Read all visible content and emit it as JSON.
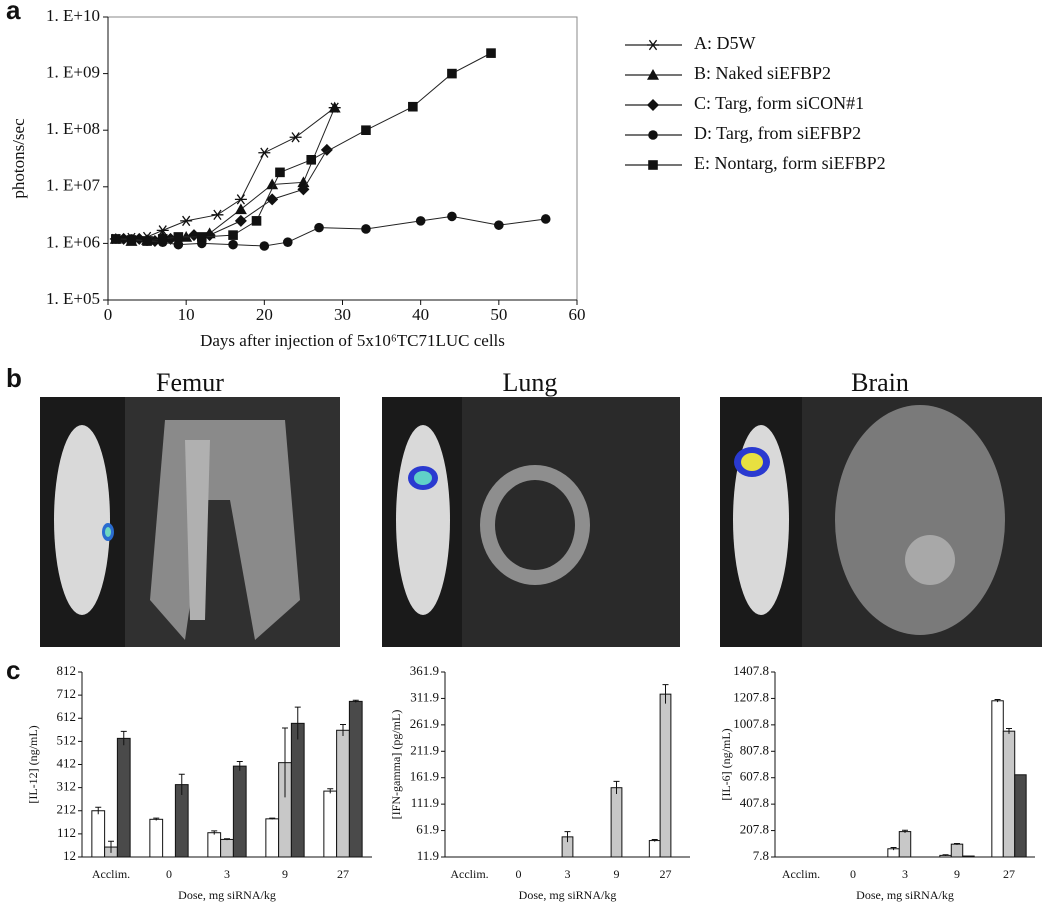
{
  "panel_labels": [
    "a",
    "b",
    "c"
  ],
  "images": {
    "titles": [
      "Femur",
      "Lung",
      "Brain"
    ]
  },
  "chart_data": [
    {
      "type": "line",
      "yscale": "log",
      "xlabel": "Days after injection of 5x10⁶TC71LUC cells",
      "ylabel": "photons/sec",
      "xlim": [
        0,
        60
      ],
      "xticks": [
        0,
        10,
        20,
        30,
        40,
        50,
        60
      ],
      "ylim": [
        100000,
        10000000000
      ],
      "yticks": [
        {
          "value": 100000,
          "label": "1. E+05"
        },
        {
          "value": 1000000,
          "label": "1. E+06"
        },
        {
          "value": 10000000,
          "label": "1. E+07"
        },
        {
          "value": 100000000,
          "label": "1. E+08"
        },
        {
          "value": 1000000000,
          "label": "1. E+09"
        },
        {
          "value": 10000000000,
          "label": "1. E+10"
        }
      ],
      "series": [
        {
          "name": "A: D5W",
          "color": "#222222",
          "marker": "asterisk",
          "x": [
            1,
            3,
            5,
            7,
            10,
            14,
            17,
            20,
            24,
            29
          ],
          "values": [
            1200000,
            1250000,
            1300000,
            1700000,
            2500000,
            3200000,
            6000000,
            40000000,
            75000000,
            250000000
          ]
        },
        {
          "name": "B: Naked siEFBP2",
          "color": "#222222",
          "marker": "triangle",
          "x": [
            1,
            3,
            5,
            7,
            10,
            13,
            17,
            21,
            25,
            29
          ],
          "values": [
            1200000,
            1100000,
            1150000,
            1300000,
            1300000,
            1500000,
            4000000,
            11000000,
            12000000,
            250000000
          ]
        },
        {
          "name": "C: Targ, form siCON#1",
          "color": "#222222",
          "marker": "diamond",
          "x": [
            2,
            4,
            6,
            8,
            11,
            13,
            17,
            21,
            25,
            28
          ],
          "values": [
            1200000,
            1200000,
            1100000,
            1200000,
            1400000,
            1400000,
            2500000,
            6000000,
            9000000,
            45000000
          ]
        },
        {
          "name": "D: Targ, from siEFBP2",
          "color": "#222222",
          "marker": "circle",
          "x": [
            1,
            3,
            5,
            7,
            9,
            12,
            16,
            20,
            23,
            27,
            33,
            40,
            44,
            50,
            56
          ],
          "values": [
            1200000,
            1200000,
            1100000,
            1050000,
            950000,
            1000000,
            950000,
            900000,
            1050000,
            1900000,
            1800000,
            2500000,
            3000000,
            2100000,
            2700000
          ]
        },
        {
          "name": "E: Nontarg, form siEFBP2",
          "color": "#222222",
          "marker": "square",
          "x": [
            1,
            3,
            5,
            7,
            9,
            12,
            16,
            19,
            22,
            26,
            33,
            39,
            44,
            49
          ],
          "values": [
            1200000,
            1150000,
            1100000,
            1200000,
            1300000,
            1300000,
            1400000,
            2500000,
            18000000,
            30000000,
            100000000,
            260000000,
            1000000000,
            2300000000
          ]
        }
      ]
    },
    {
      "type": "bar",
      "ylabel": "[IL-12] (ng/mL)",
      "xlabel": "Dose, mg siRNA/kg",
      "categories": [
        "Acclim.",
        "0",
        "3",
        "9",
        "27"
      ],
      "ylim": [
        12,
        812
      ],
      "yticks": [
        12,
        112,
        212,
        312,
        412,
        512,
        612,
        712,
        812
      ],
      "series": [
        {
          "color": "#ffffff",
          "values": [
            212,
            175,
            117,
            177,
            297
          ],
          "errors": [
            15,
            5,
            8,
            3,
            10
          ]
        },
        {
          "color": "#c8c8c8",
          "values": [
            55,
            null,
            88,
            420,
            560
          ],
          "errors": [
            25,
            null,
            3,
            150,
            25
          ]
        },
        {
          "color": "#4a4a4a",
          "values": [
            525,
            325,
            405,
            590,
            685
          ],
          "errors": [
            30,
            45,
            20,
            70,
            5
          ]
        }
      ]
    },
    {
      "type": "bar",
      "ylabel": "[IFN-gamma] (pg/mL)",
      "xlabel": "Dose, mg siRNA/kg",
      "categories": [
        "Acclim.",
        "0",
        "3",
        "9",
        "27"
      ],
      "ylim": [
        11.9,
        361.9
      ],
      "yticks": [
        11.9,
        61.9,
        111.9,
        161.9,
        211.9,
        261.9,
        311.9,
        361.9
      ],
      "series": [
        {
          "color": "#ffffff",
          "values": [
            null,
            null,
            null,
            null,
            43
          ],
          "errors": [
            null,
            null,
            null,
            null,
            2
          ]
        },
        {
          "color": "#c8c8c8",
          "values": [
            null,
            null,
            50,
            143,
            320
          ],
          "errors": [
            null,
            null,
            10,
            12,
            18
          ]
        },
        {
          "color": "#4a4a4a",
          "values": [
            null,
            null,
            null,
            null,
            null
          ],
          "errors": [
            null,
            null,
            null,
            null,
            null
          ]
        }
      ]
    },
    {
      "type": "bar",
      "ylabel": "[IL-6] (ng/mL)",
      "xlabel": "Dose, mg siRNA/kg",
      "categories": [
        "Acclim.",
        "0",
        "3",
        "9",
        "27"
      ],
      "ylim": [
        7.8,
        1407.8
      ],
      "yticks": [
        7.8,
        207.8,
        407.8,
        607.8,
        807.8,
        1007.8,
        1207.8,
        1407.8
      ],
      "series": [
        {
          "color": "#ffffff",
          "values": [
            null,
            null,
            70,
            20,
            1190
          ],
          "errors": [
            null,
            null,
            10,
            5,
            10
          ]
        },
        {
          "color": "#c8c8c8",
          "values": [
            null,
            null,
            200,
            105,
            960
          ],
          "errors": [
            null,
            null,
            10,
            5,
            20
          ]
        },
        {
          "color": "#4a4a4a",
          "values": [
            null,
            null,
            null,
            15,
            630
          ],
          "errors": [
            null,
            null,
            null,
            null,
            null
          ]
        }
      ]
    }
  ]
}
